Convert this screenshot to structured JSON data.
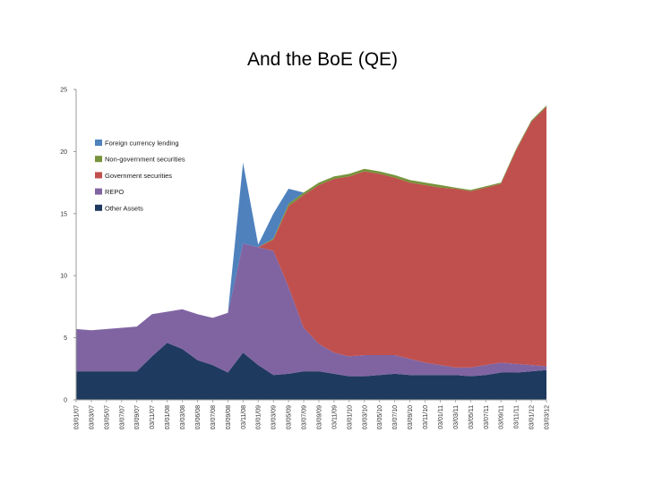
{
  "slide": {
    "title": "And the BoE (QE)"
  },
  "chart_data": {
    "type": "area",
    "stacked": true,
    "title": "",
    "xlabel": "",
    "ylabel": "",
    "ylim": [
      0,
      25
    ],
    "yticks": [
      0,
      5,
      10,
      15,
      20,
      25
    ],
    "legend_placement": "top-left",
    "x_tick_labels": [
      "03/01/07",
      "03/03/07",
      "03/05/07",
      "03/07/07",
      "03/09/07",
      "03/11/07",
      "03/01/08",
      "03/03/08",
      "03/06/08",
      "03/07/08",
      "03/09/08",
      "03/11/08",
      "03/01/09",
      "03/03/09",
      "03/05/09",
      "03/07/09",
      "03/09/09",
      "03/11/09",
      "03/01/10",
      "03/03/10",
      "03/05/10",
      "03/07/10",
      "03/09/10",
      "03/11/10",
      "03/01/11",
      "03/03/11",
      "03/05/11",
      "03/07/11",
      "03/09/11",
      "03/11/11",
      "03/01/12",
      "03/03/12"
    ],
    "legend": [
      "Foreign currency lending",
      "Non-government securities",
      "Government securities",
      "REPO",
      "Other Assets"
    ],
    "series": [
      {
        "name": "Other Assets",
        "color": "#1f3a5f",
        "values": [
          2.3,
          2.3,
          2.3,
          2.3,
          2.3,
          3.5,
          4.6,
          4.1,
          3.2,
          2.8,
          2.2,
          3.8,
          2.8,
          2.0,
          2.1,
          2.3,
          2.3,
          2.1,
          1.9,
          1.9,
          2.0,
          2.1,
          2.0,
          2.0,
          2.0,
          2.0,
          1.9,
          2.0,
          2.2,
          2.2,
          2.3,
          2.4
        ]
      },
      {
        "name": "REPO",
        "color": "#8064a2",
        "values": [
          3.4,
          3.3,
          3.4,
          3.5,
          3.6,
          3.4,
          2.5,
          3.2,
          3.7,
          3.8,
          4.8,
          8.8,
          9.5,
          10.0,
          7.0,
          3.5,
          2.2,
          1.7,
          1.6,
          1.7,
          1.6,
          1.5,
          1.3,
          1.0,
          0.8,
          0.6,
          0.7,
          0.8,
          0.8,
          0.7,
          0.5,
          0.3
        ]
      },
      {
        "name": "Government securities",
        "color": "#c0504d",
        "values": [
          0,
          0,
          0,
          0,
          0,
          0,
          0,
          0,
          0,
          0,
          0,
          0,
          0,
          0.9,
          6.5,
          10.7,
          12.8,
          14.0,
          14.5,
          14.8,
          14.6,
          14.3,
          14.2,
          14.3,
          14.3,
          14.4,
          14.2,
          14.3,
          14.4,
          17.2,
          19.6,
          20.9
        ]
      },
      {
        "name": "Non-government securities",
        "color": "#77933c",
        "values": [
          0,
          0,
          0,
          0,
          0,
          0,
          0,
          0,
          0,
          0,
          0,
          0,
          0,
          0.1,
          0.2,
          0.2,
          0.2,
          0.2,
          0.2,
          0.2,
          0.2,
          0.2,
          0.2,
          0.2,
          0.2,
          0.1,
          0.1,
          0.1,
          0.1,
          0.1,
          0.1,
          0.1
        ]
      },
      {
        "name": "Foreign currency lending",
        "color": "#4f81bd",
        "values": [
          0,
          0,
          0,
          0,
          0,
          0,
          0,
          0,
          0,
          0,
          0,
          6.5,
          0.2,
          2.0,
          1.2,
          0,
          0,
          0,
          0,
          0,
          0,
          0,
          0,
          0,
          0,
          0,
          0,
          0,
          0,
          0,
          0,
          0
        ]
      }
    ]
  }
}
